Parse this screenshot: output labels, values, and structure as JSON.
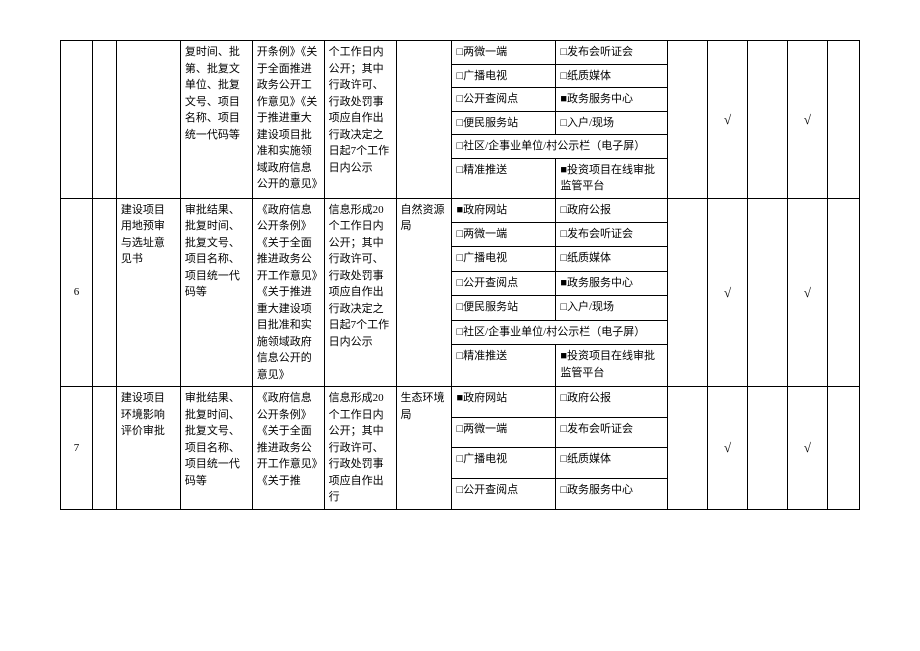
{
  "cols": {
    "c1_w": "4%",
    "c2_w": "3%",
    "c3_w": "8%",
    "c4_w": "9%",
    "c5_w": "9%",
    "c6_w": "9%",
    "c7_w": "7%",
    "c8_w": "13%",
    "c9_w": "14%",
    "c10_w": "5%",
    "c11_w": "5%",
    "c12_w": "5%",
    "c13_w": "5%",
    "c14_w": "4%"
  },
  "rows_A": {
    "col4": "复时间、批第、批复文单位、批复文号、项目名称、项目统一代码等",
    "col5": "开条例》《关于全面推进政务公开工作意见》《关于推进重大建设项目批准和实施领域政府信息公开的意见》",
    "col6": "个工作日内公开；其中行政许可、行政处罚事项应自作出行政决定之日起7个工作日内公示",
    "channels": [
      [
        "□两微一端",
        "□发布会听证会"
      ],
      [
        "□广播电视",
        "□纸质媒体"
      ],
      [
        "□公开查阅点",
        "■政务服务中心"
      ],
      [
        "□便民服务站",
        "□入户/现场"
      ]
    ],
    "wide1": "□社区/企事业单位/村公示栏（电子屏）",
    "last": [
      "□精准推送",
      "■投资项目在线审批监管平台"
    ],
    "check_cols": [
      "",
      "√",
      "",
      "√",
      ""
    ]
  },
  "rows_B": {
    "num": "6",
    "col3": "建设项目用地预审与选址意见书",
    "col4": "审批结果、批复时间、批复文号、项目名称、项目统一代码等",
    "col5": "《政府信息公开条例》《关于全面推进政务公开工作意见》《关于推进重大建设项目批准和实施领域政府信息公开的意见》",
    "col6": "信息形成20个工作日内公开；其中行政许可、行政处罚事项应自作出行政决定之日起7个工作日内公示",
    "col7": "自然资源局",
    "channels": [
      [
        "■政府网站",
        "□政府公报"
      ],
      [
        "□两微一端",
        "□发布会听证会"
      ],
      [
        "□广播电视",
        "□纸质媒体"
      ],
      [
        "□公开查阅点",
        "■政务服务中心"
      ],
      [
        "□便民服务站",
        "□入户/现场"
      ]
    ],
    "wide1": "□社区/企事业单位/村公示栏（电子屏）",
    "last": [
      "□精准推送",
      "■投资项目在线审批监管平台"
    ],
    "check_cols": [
      "",
      "√",
      "",
      "√",
      ""
    ]
  },
  "rows_C": {
    "num": "7",
    "col3": "建设项目环境影响评价审批",
    "col4": "审批结果、批复时间、批复文号、项目名称、项目统一代码等",
    "col5": "《政府信息公开条例》《关于全面推进政务公开工作意见》《关于推",
    "col6": "信息形成20个工作日内公开；其中行政许可、行政处罚事项应自作出行",
    "col7": "生态环境局",
    "channels": [
      [
        "■政府网站",
        "□政府公报"
      ],
      [
        "□两微一端",
        "□发布会听证会"
      ],
      [
        "□广播电视",
        "□纸质媒体"
      ],
      [
        "□公开查阅点",
        "□政务服务中心"
      ]
    ],
    "check_cols": [
      "",
      "√",
      "",
      "√",
      ""
    ]
  }
}
